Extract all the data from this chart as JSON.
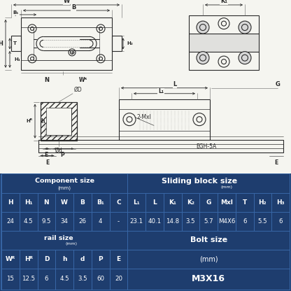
{
  "bg_color": "#f5f5f0",
  "table_bg": "#1e3d6e",
  "table_bg2": "#1a3560",
  "table_text": "#ffffff",
  "table_border": "#3a6aaa",
  "diagram_line": "#2a2a2a",
  "diagram_bg": "#f5f5f0",
  "hatch_color": "#aaaaaa",
  "header_row": [
    "H",
    "H₁",
    "N",
    "W",
    "B",
    "B₁",
    "C",
    "L₁",
    "L",
    "K₁",
    "K₂",
    "G",
    "Mxl",
    "T",
    "H₂",
    "H₃"
  ],
  "data_row": [
    "24",
    "4.5",
    "9.5",
    "34",
    "26",
    "4",
    "-",
    "23.1",
    "40.1",
    "14.8",
    "3.5",
    "5.7",
    "M4X6",
    "6",
    "5.5",
    "6"
  ],
  "rail_header_row": [
    "Wᴿ",
    "Hᴿ",
    "D",
    "h",
    "d",
    "P",
    "E"
  ],
  "rail_data_row": [
    "15",
    "12.5",
    "6",
    "4.5",
    "3.5",
    "60",
    "20"
  ],
  "bolt_mm": "(mm)",
  "bolt_size": "M3X16",
  "label_W": "W",
  "label_B": "B",
  "label_B1": "B₁",
  "label_H": "H",
  "label_H1": "H₁",
  "label_H2": "H₂",
  "label_T": "T",
  "label_N": "N",
  "label_WR": "Wᴿ",
  "label_K1": "K₁",
  "label_L": "L",
  "label_L1": "L₁",
  "label_G": "G",
  "label_2Mxl": "2-Mxl",
  "label_EGH": "EGH-5A",
  "label_OD": "ØD",
  "label_Od": "Ød",
  "label_HR": "Hᴿ",
  "label_h": "h",
  "label_E": "E",
  "label_P": "P"
}
